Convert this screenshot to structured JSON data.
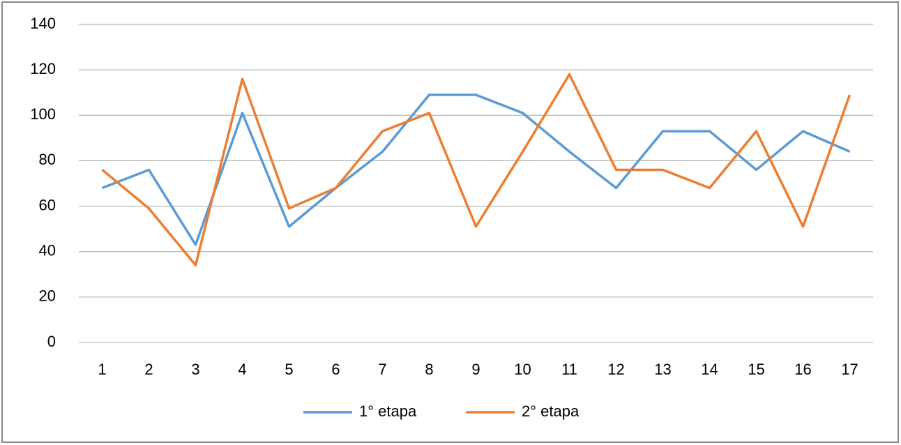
{
  "chart_data": {
    "type": "line",
    "categories": [
      "1",
      "2",
      "3",
      "4",
      "5",
      "6",
      "7",
      "8",
      "9",
      "10",
      "11",
      "12",
      "13",
      "14",
      "15",
      "16",
      "17"
    ],
    "series": [
      {
        "name": "1° etapa",
        "color": "#5b9bd5",
        "values": [
          68,
          76,
          43,
          101,
          51,
          68,
          84,
          109,
          109,
          101,
          84,
          68,
          93,
          93,
          76,
          93,
          84
        ]
      },
      {
        "name": "2° etapa",
        "color": "#ed7d31",
        "values": [
          76,
          59,
          34,
          116,
          59,
          68,
          93,
          101,
          51,
          84,
          118,
          76,
          76,
          68,
          93,
          51,
          109
        ]
      }
    ],
    "ylim": [
      0,
      140
    ],
    "yticks": [
      0,
      20,
      40,
      60,
      80,
      100,
      120,
      140
    ],
    "grid": true,
    "legend": "bottom"
  }
}
